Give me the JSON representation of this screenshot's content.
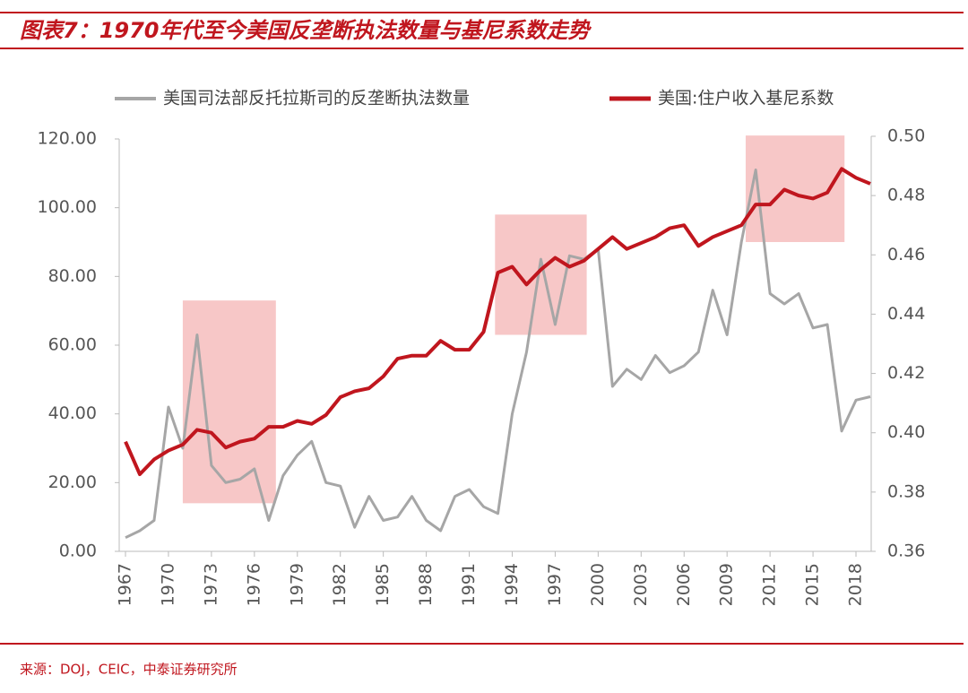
{
  "chart_data": {
    "type": "line",
    "title": "图表7：1970年代至今美国反垄断执法数量与基尼系数走势",
    "source": "来源：DOJ，CEIC，中泰证券研究所",
    "x": [
      1967,
      1968,
      1969,
      1970,
      1971,
      1972,
      1973,
      1974,
      1975,
      1976,
      1977,
      1978,
      1979,
      1980,
      1981,
      1982,
      1983,
      1984,
      1985,
      1986,
      1987,
      1988,
      1989,
      1990,
      1991,
      1992,
      1993,
      1994,
      1995,
      1996,
      1997,
      1998,
      1999,
      2000,
      2001,
      2002,
      2003,
      2004,
      2005,
      2006,
      2007,
      2008,
      2009,
      2010,
      2011,
      2012,
      2013,
      2014,
      2015,
      2016,
      2017,
      2018,
      2019
    ],
    "xlim": [
      1967,
      2019
    ],
    "xticks": [
      1967,
      1970,
      1973,
      1976,
      1979,
      1982,
      1985,
      1988,
      1991,
      1994,
      1997,
      2000,
      2003,
      2006,
      2009,
      2012,
      2015,
      2018
    ],
    "ylim": [
      0,
      120
    ],
    "yticks": [
      {
        "value": 0,
        "label": "0.00"
      },
      {
        "value": 20,
        "label": "20.00"
      },
      {
        "value": 40,
        "label": "40.00"
      },
      {
        "value": 60,
        "label": "60.00"
      },
      {
        "value": 80,
        "label": "80.00"
      },
      {
        "value": 100,
        "label": "100.00"
      },
      {
        "value": 120,
        "label": "120.00"
      }
    ],
    "y2lim": [
      0.36,
      0.5
    ],
    "y2ticks": [
      0.36,
      0.38,
      {
        "value": 0.4,
        "label": "0.40"
      },
      0.42,
      0.44,
      0.46,
      0.48,
      {
        "value": 0.5,
        "label": "0.50"
      }
    ],
    "series": [
      {
        "name": "美国司法部反托拉斯司的反垄断执法数量",
        "color": "#a6a6a6",
        "axis": "y",
        "values": [
          4,
          6,
          9,
          42,
          30,
          63,
          25,
          20,
          21,
          24,
          9,
          22,
          28,
          32,
          20,
          19,
          7,
          16,
          9,
          10,
          16,
          9,
          6,
          16,
          18,
          13,
          11,
          40,
          58,
          85,
          66,
          86,
          85,
          88,
          48,
          53,
          50,
          57,
          52,
          54,
          58,
          76,
          63,
          90,
          111,
          75,
          72,
          75,
          65,
          66,
          35,
          44,
          45
        ]
      },
      {
        "name": "美国:住户收入基尼系数",
        "color": "#c0161e",
        "axis": "y2",
        "values": [
          0.397,
          0.386,
          0.391,
          0.394,
          0.396,
          0.401,
          0.4,
          0.395,
          0.397,
          0.398,
          0.402,
          0.402,
          0.404,
          0.403,
          0.406,
          0.412,
          0.414,
          0.415,
          0.419,
          0.425,
          0.426,
          0.426,
          0.431,
          0.428,
          0.428,
          0.434,
          0.454,
          0.456,
          0.45,
          0.455,
          0.459,
          0.456,
          0.458,
          0.462,
          0.466,
          0.462,
          0.464,
          0.466,
          0.469,
          0.47,
          0.463,
          0.466,
          0.468,
          0.47,
          0.477,
          0.477,
          0.482,
          0.48,
          0.479,
          0.481,
          0.489,
          0.486,
          0.484
        ]
      }
    ],
    "highlights": [
      {
        "x": [
          1971,
          1977.5
        ],
        "y": [
          14,
          73
        ]
      },
      {
        "x": [
          1992.8,
          1999.2
        ],
        "y": [
          63,
          98
        ]
      },
      {
        "x": [
          2010.3,
          2017.2
        ],
        "y": [
          90,
          121
        ]
      }
    ],
    "grid": false
  }
}
